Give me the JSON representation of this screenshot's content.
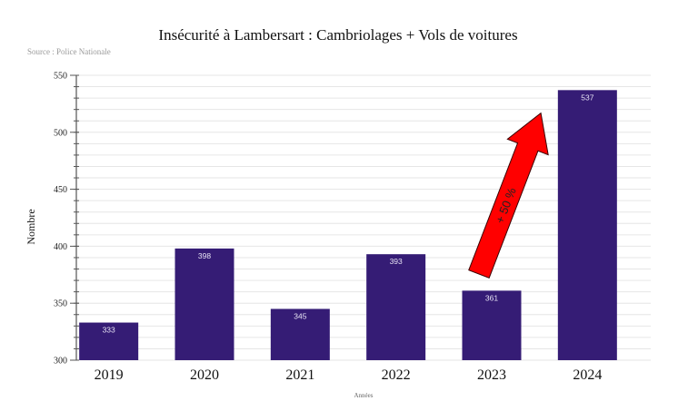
{
  "chart_data": {
    "type": "bar",
    "title": "Insécurité à Lambersart  :  Cambriolages  +  Vols de voitures",
    "source": "Source : Police Nationale",
    "xlabel": "Années",
    "ylabel": "Nombre",
    "categories": [
      "2019",
      "2020",
      "2021",
      "2022",
      "2023",
      "2024"
    ],
    "values": [
      333,
      398,
      345,
      393,
      361,
      537
    ],
    "data_labels": [
      "333",
      "398",
      "345",
      "393",
      "361",
      "537"
    ],
    "ylim": [
      300,
      550
    ],
    "yticks": [
      300,
      350,
      400,
      450,
      500,
      550
    ],
    "minor_tick_step": 10,
    "grid": true,
    "bar_color": "#351c75",
    "annotation": {
      "text": "+ 50 %",
      "from_category": "2023",
      "to_category": "2024",
      "color": "#ff0000"
    }
  }
}
